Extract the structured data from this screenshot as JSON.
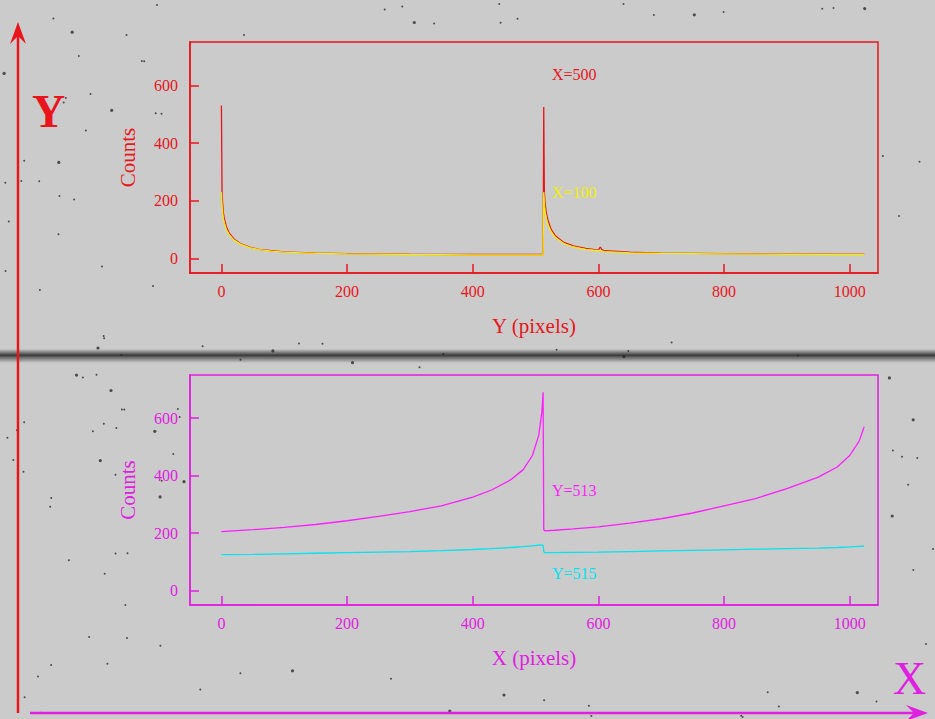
{
  "image_axes": [
    {
      "label": "Y",
      "color": "#e8161c"
    },
    {
      "label": "X",
      "color": "#e020e0"
    }
  ],
  "chart_data": [
    {
      "type": "line",
      "color": "#e8161c",
      "x_label": "Y (pixels)",
      "y_label": "Counts",
      "xlim": [
        -50,
        1045
      ],
      "xticks": [
        0,
        200,
        400,
        600,
        800,
        1000
      ],
      "ylim": [
        -50,
        750
      ],
      "yticks": [
        0,
        200,
        400,
        600
      ],
      "grid": false,
      "x": [
        0,
        1,
        2,
        3,
        5,
        8,
        12,
        20,
        30,
        45,
        60,
        80,
        100,
        150,
        200,
        300,
        400,
        500,
        510,
        512,
        513,
        514,
        515,
        517,
        520,
        525,
        532,
        545,
        560,
        580,
        600,
        603,
        606,
        610,
        650,
        700,
        800,
        900,
        1000,
        1023
      ],
      "series": [
        {
          "name": "X=500",
          "color": "#e8161c",
          "values": [
            530,
            230,
            190,
            160,
            135,
            110,
            90,
            68,
            52,
            40,
            32,
            27,
            23,
            19,
            17,
            15,
            14,
            14,
            14,
            14,
            525,
            230,
            195,
            160,
            130,
            100,
            78,
            56,
            44,
            35,
            29,
            40,
            30,
            27,
            22,
            19,
            17,
            16,
            15,
            15
          ]
        },
        {
          "name": "X=100",
          "color": "#f2ee00",
          "values": [
            230,
            185,
            160,
            140,
            120,
            100,
            84,
            64,
            50,
            38,
            31,
            26,
            22,
            18,
            16,
            14,
            13,
            13,
            13,
            13,
            230,
            190,
            165,
            140,
            115,
            92,
            72,
            52,
            40,
            32,
            27,
            28,
            26,
            24,
            20,
            18,
            16,
            15,
            14,
            14
          ]
        }
      ]
    },
    {
      "type": "line",
      "color": "#e020e0",
      "x_label": "X (pixels)",
      "y_label": "Counts",
      "xlim": [
        -50,
        1045
      ],
      "xticks": [
        0,
        200,
        400,
        600,
        800,
        1000
      ],
      "ylim": [
        -50,
        750
      ],
      "yticks": [
        0,
        200,
        400,
        600
      ],
      "grid": false,
      "x": [
        0,
        50,
        100,
        150,
        200,
        250,
        300,
        350,
        400,
        430,
        460,
        480,
        495,
        505,
        510,
        512,
        513,
        515,
        530,
        560,
        600,
        650,
        700,
        750,
        800,
        850,
        900,
        950,
        980,
        1000,
        1015,
        1023
      ],
      "series": [
        {
          "name": "Y=513",
          "color": "#ff1eff",
          "values": [
            205,
            212,
            220,
            230,
            243,
            258,
            275,
            295,
            325,
            350,
            385,
            420,
            470,
            540,
            620,
            690,
            212,
            208,
            210,
            215,
            222,
            235,
            250,
            270,
            295,
            320,
            355,
            395,
            430,
            470,
            520,
            570
          ]
        },
        {
          "name": "Y=515",
          "color": "#00e4f0",
          "values": [
            125,
            126,
            128,
            130,
            132,
            134,
            136,
            139,
            143,
            146,
            150,
            153,
            156,
            158,
            158,
            157,
            135,
            132,
            132,
            133,
            134,
            136,
            138,
            140,
            142,
            144,
            146,
            148,
            150,
            152,
            154,
            155
          ]
        }
      ]
    }
  ]
}
